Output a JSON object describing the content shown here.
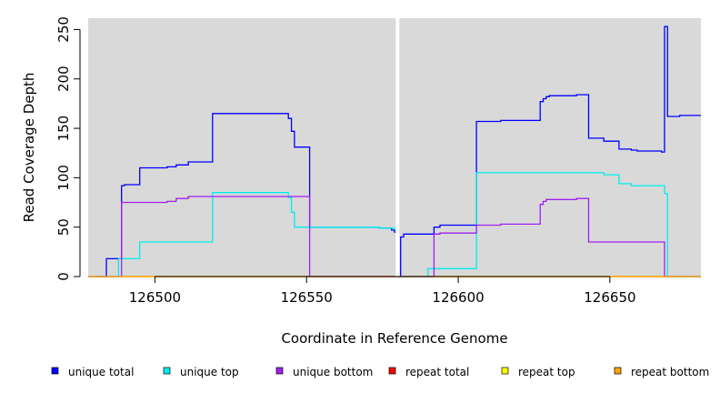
{
  "chart_data": {
    "type": "line",
    "title": "",
    "xlabel": "Coordinate in Reference Genome",
    "ylabel": "Read Coverage Depth",
    "xlim": [
      126478,
      126680
    ],
    "ylim": [
      0,
      255
    ],
    "xticks": [
      126500,
      126550,
      126600,
      126650
    ],
    "yticks": [
      0,
      50,
      100,
      150,
      200,
      250
    ],
    "gap_marker_x": 126580,
    "grid": false,
    "background": "#d9d9d9",
    "legend_position": "bottom",
    "series": [
      {
        "name": "unique total",
        "color": "#0000ff",
        "x": [
          126481,
          126484,
          126484,
          126489,
          126489,
          126490,
          126490,
          126495,
          126495,
          126504,
          126504,
          126507,
          126507,
          126511,
          126511,
          126519,
          126519,
          126544,
          126544,
          126545,
          126545,
          126546,
          126546,
          126551,
          126551,
          126574,
          126574,
          126578,
          126578,
          126579,
          126579,
          126580,
          126580,
          126581,
          126581,
          126582,
          126582,
          126592,
          126592,
          126594,
          126594,
          126606,
          126606,
          126614,
          126614,
          126627,
          126627,
          126628,
          126628,
          126629,
          126629,
          126630,
          126630,
          126631,
          126631,
          126639,
          126639,
          126643,
          126643,
          126648,
          126648,
          126653,
          126653,
          126657,
          126657,
          126659,
          126659,
          126667,
          126667,
          126668,
          126668,
          126669,
          126669,
          126673,
          126673,
          126680
        ],
        "y": [
          0,
          0,
          18,
          18,
          92,
          92,
          93,
          93,
          110,
          110,
          111,
          111,
          113,
          113,
          116,
          116,
          165,
          165,
          160,
          160,
          147,
          147,
          131,
          131,
          50,
          50,
          49,
          49,
          47,
          47,
          45,
          45,
          0,
          0,
          40,
          40,
          43,
          43,
          50,
          50,
          52,
          52,
          157,
          157,
          158,
          158,
          177,
          177,
          180,
          180,
          182,
          182,
          183,
          183,
          183,
          183,
          184,
          184,
          140,
          140,
          137,
          137,
          129,
          129,
          128,
          128,
          127,
          127,
          126,
          126,
          253,
          253,
          162,
          162,
          163,
          163
        ]
      },
      {
        "name": "unique top",
        "color": "#00eeee",
        "x": [
          126478,
          126488,
          126488,
          126495,
          126495,
          126519,
          126519,
          126544,
          126544,
          126545,
          126545,
          126546,
          126546,
          126551,
          126551,
          126574,
          126574,
          126580,
          126580,
          126590,
          126590,
          126606,
          126606,
          126643,
          126643,
          126648,
          126648,
          126653,
          126653,
          126657,
          126657,
          126668,
          126668,
          126669,
          126669,
          126680
        ],
        "y": [
          0,
          0,
          18,
          18,
          35,
          35,
          85,
          85,
          80,
          80,
          65,
          65,
          50,
          50,
          50,
          50,
          49,
          49,
          0,
          0,
          8,
          8,
          105,
          105,
          105,
          105,
          103,
          103,
          94,
          94,
          92,
          92,
          84,
          84,
          0,
          0
        ]
      },
      {
        "name": "unique bottom",
        "color": "#a020f0",
        "x": [
          126478,
          126489,
          126489,
          126504,
          126504,
          126507,
          126507,
          126511,
          126511,
          126551,
          126551,
          126592,
          126592,
          126594,
          126594,
          126606,
          126606,
          126614,
          126614,
          126627,
          126627,
          126628,
          126628,
          126629,
          126629,
          126639,
          126639,
          126643,
          126643,
          126668,
          126668,
          126680
        ],
        "y": [
          0,
          0,
          75,
          75,
          76,
          76,
          79,
          79,
          81,
          81,
          0,
          0,
          43,
          43,
          44,
          44,
          52,
          52,
          53,
          53,
          73,
          73,
          76,
          76,
          78,
          78,
          79,
          79,
          35,
          35,
          0,
          0
        ]
      },
      {
        "name": "repeat total",
        "color": "#ff0000",
        "x": [
          126478,
          126680
        ],
        "y": [
          0,
          0
        ]
      },
      {
        "name": "repeat top",
        "color": "#ffff00",
        "x": [
          126478,
          126680
        ],
        "y": [
          0,
          0
        ]
      },
      {
        "name": "repeat bottom",
        "color": "#ffa500",
        "x": [
          126478,
          126680
        ],
        "y": [
          0,
          0
        ]
      }
    ]
  }
}
